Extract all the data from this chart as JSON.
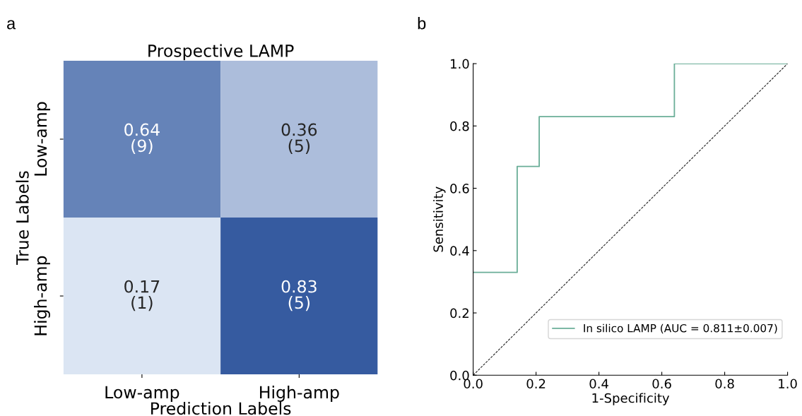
{
  "chart_data": [
    {
      "type": "heatmap",
      "title": "Prospective LAMP",
      "xlabel": "Prediction Labels",
      "ylabel": "True Labels",
      "annotations": [
        "a",
        "(9)",
        "(5)",
        "(1)",
        "(5)"
      ],
      "data_labels": true,
      "categories": [
        "Low-amp",
        "High-amp"
      ],
      "y_categories": [
        "Low-amp",
        "High-amp"
      ],
      "cells": [
        [
          0.64,
          0.36
        ],
        [
          0.17,
          0.83
        ]
      ]
    },
    {
      "type": "step",
      "xlabel": "1-Specificity",
      "ylabel": "Sensitivity",
      "annotations": [
        "b"
      ],
      "xlim": [
        0,
        1
      ],
      "ylim": [
        0,
        1
      ],
      "xticks": [
        {
          "value": 0,
          "label": "0.0"
        },
        {
          "value": 0.2,
          "label": "0.2"
        },
        {
          "value": 0.4,
          "label": "0.4"
        },
        {
          "value": 0.6,
          "label": "0.6"
        },
        {
          "value": 0.8,
          "label": "0.8"
        },
        {
          "value": 1,
          "label": "1.0"
        }
      ],
      "yticks": [
        {
          "value": 0,
          "label": "0.0"
        },
        {
          "value": 0.2,
          "label": "0.2"
        },
        {
          "value": 0.4,
          "label": "0.4"
        },
        {
          "value": 0.6,
          "label": "0.6"
        },
        {
          "value": 0.8,
          "label": "0.8"
        },
        {
          "value": 1,
          "label": "1.0"
        }
      ],
      "legend": "bottom right",
      "grid": false,
      "series": [
        {
          "name": "In silico LAMP (AUC = 0.811±0.007)",
          "color": "#6aae98",
          "x": [
            0,
            0.14,
            0.14,
            0.21,
            0.21,
            0.64,
            0.64,
            1
          ],
          "values": [
            0.33,
            0.33,
            0.67,
            0.67,
            0.83,
            0.83,
            1,
            1
          ]
        },
        {
          "type": "line",
          "color": "#222222",
          "line_style": "dashed",
          "x": [
            0,
            1
          ],
          "values": [
            0,
            1
          ]
        }
      ]
    }
  ]
}
